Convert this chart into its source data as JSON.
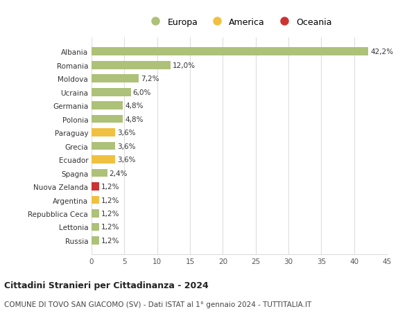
{
  "categories": [
    "Albania",
    "Romania",
    "Moldova",
    "Ucraina",
    "Germania",
    "Polonia",
    "Paraguay",
    "Grecia",
    "Ecuador",
    "Spagna",
    "Nuova Zelanda",
    "Argentina",
    "Repubblica Ceca",
    "Lettonia",
    "Russia"
  ],
  "values": [
    42.2,
    12.0,
    7.2,
    6.0,
    4.8,
    4.8,
    3.6,
    3.6,
    3.6,
    2.4,
    1.2,
    1.2,
    1.2,
    1.2,
    1.2
  ],
  "labels": [
    "42,2%",
    "12,0%",
    "7,2%",
    "6,0%",
    "4,8%",
    "4,8%",
    "3,6%",
    "3,6%",
    "3,6%",
    "2,4%",
    "1,2%",
    "1,2%",
    "1,2%",
    "1,2%",
    "1,2%"
  ],
  "colors": [
    "#adc178",
    "#adc178",
    "#adc178",
    "#adc178",
    "#adc178",
    "#adc178",
    "#f0c040",
    "#adc178",
    "#f0c040",
    "#adc178",
    "#cc3333",
    "#f0c040",
    "#adc178",
    "#adc178",
    "#adc178"
  ],
  "color_europa": "#adc178",
  "color_america": "#f0c040",
  "color_oceania": "#cc3333",
  "legend_labels": [
    "Europa",
    "America",
    "Oceania"
  ],
  "title": "Cittadini Stranieri per Cittadinanza - 2024",
  "subtitle": "COMUNE DI TOVO SAN GIACOMO (SV) - Dati ISTAT al 1° gennaio 2024 - TUTTITALIA.IT",
  "xlim": [
    0,
    45
  ],
  "xticks": [
    0,
    5,
    10,
    15,
    20,
    25,
    30,
    35,
    40,
    45
  ],
  "background_color": "#ffffff",
  "grid_color": "#dddddd"
}
